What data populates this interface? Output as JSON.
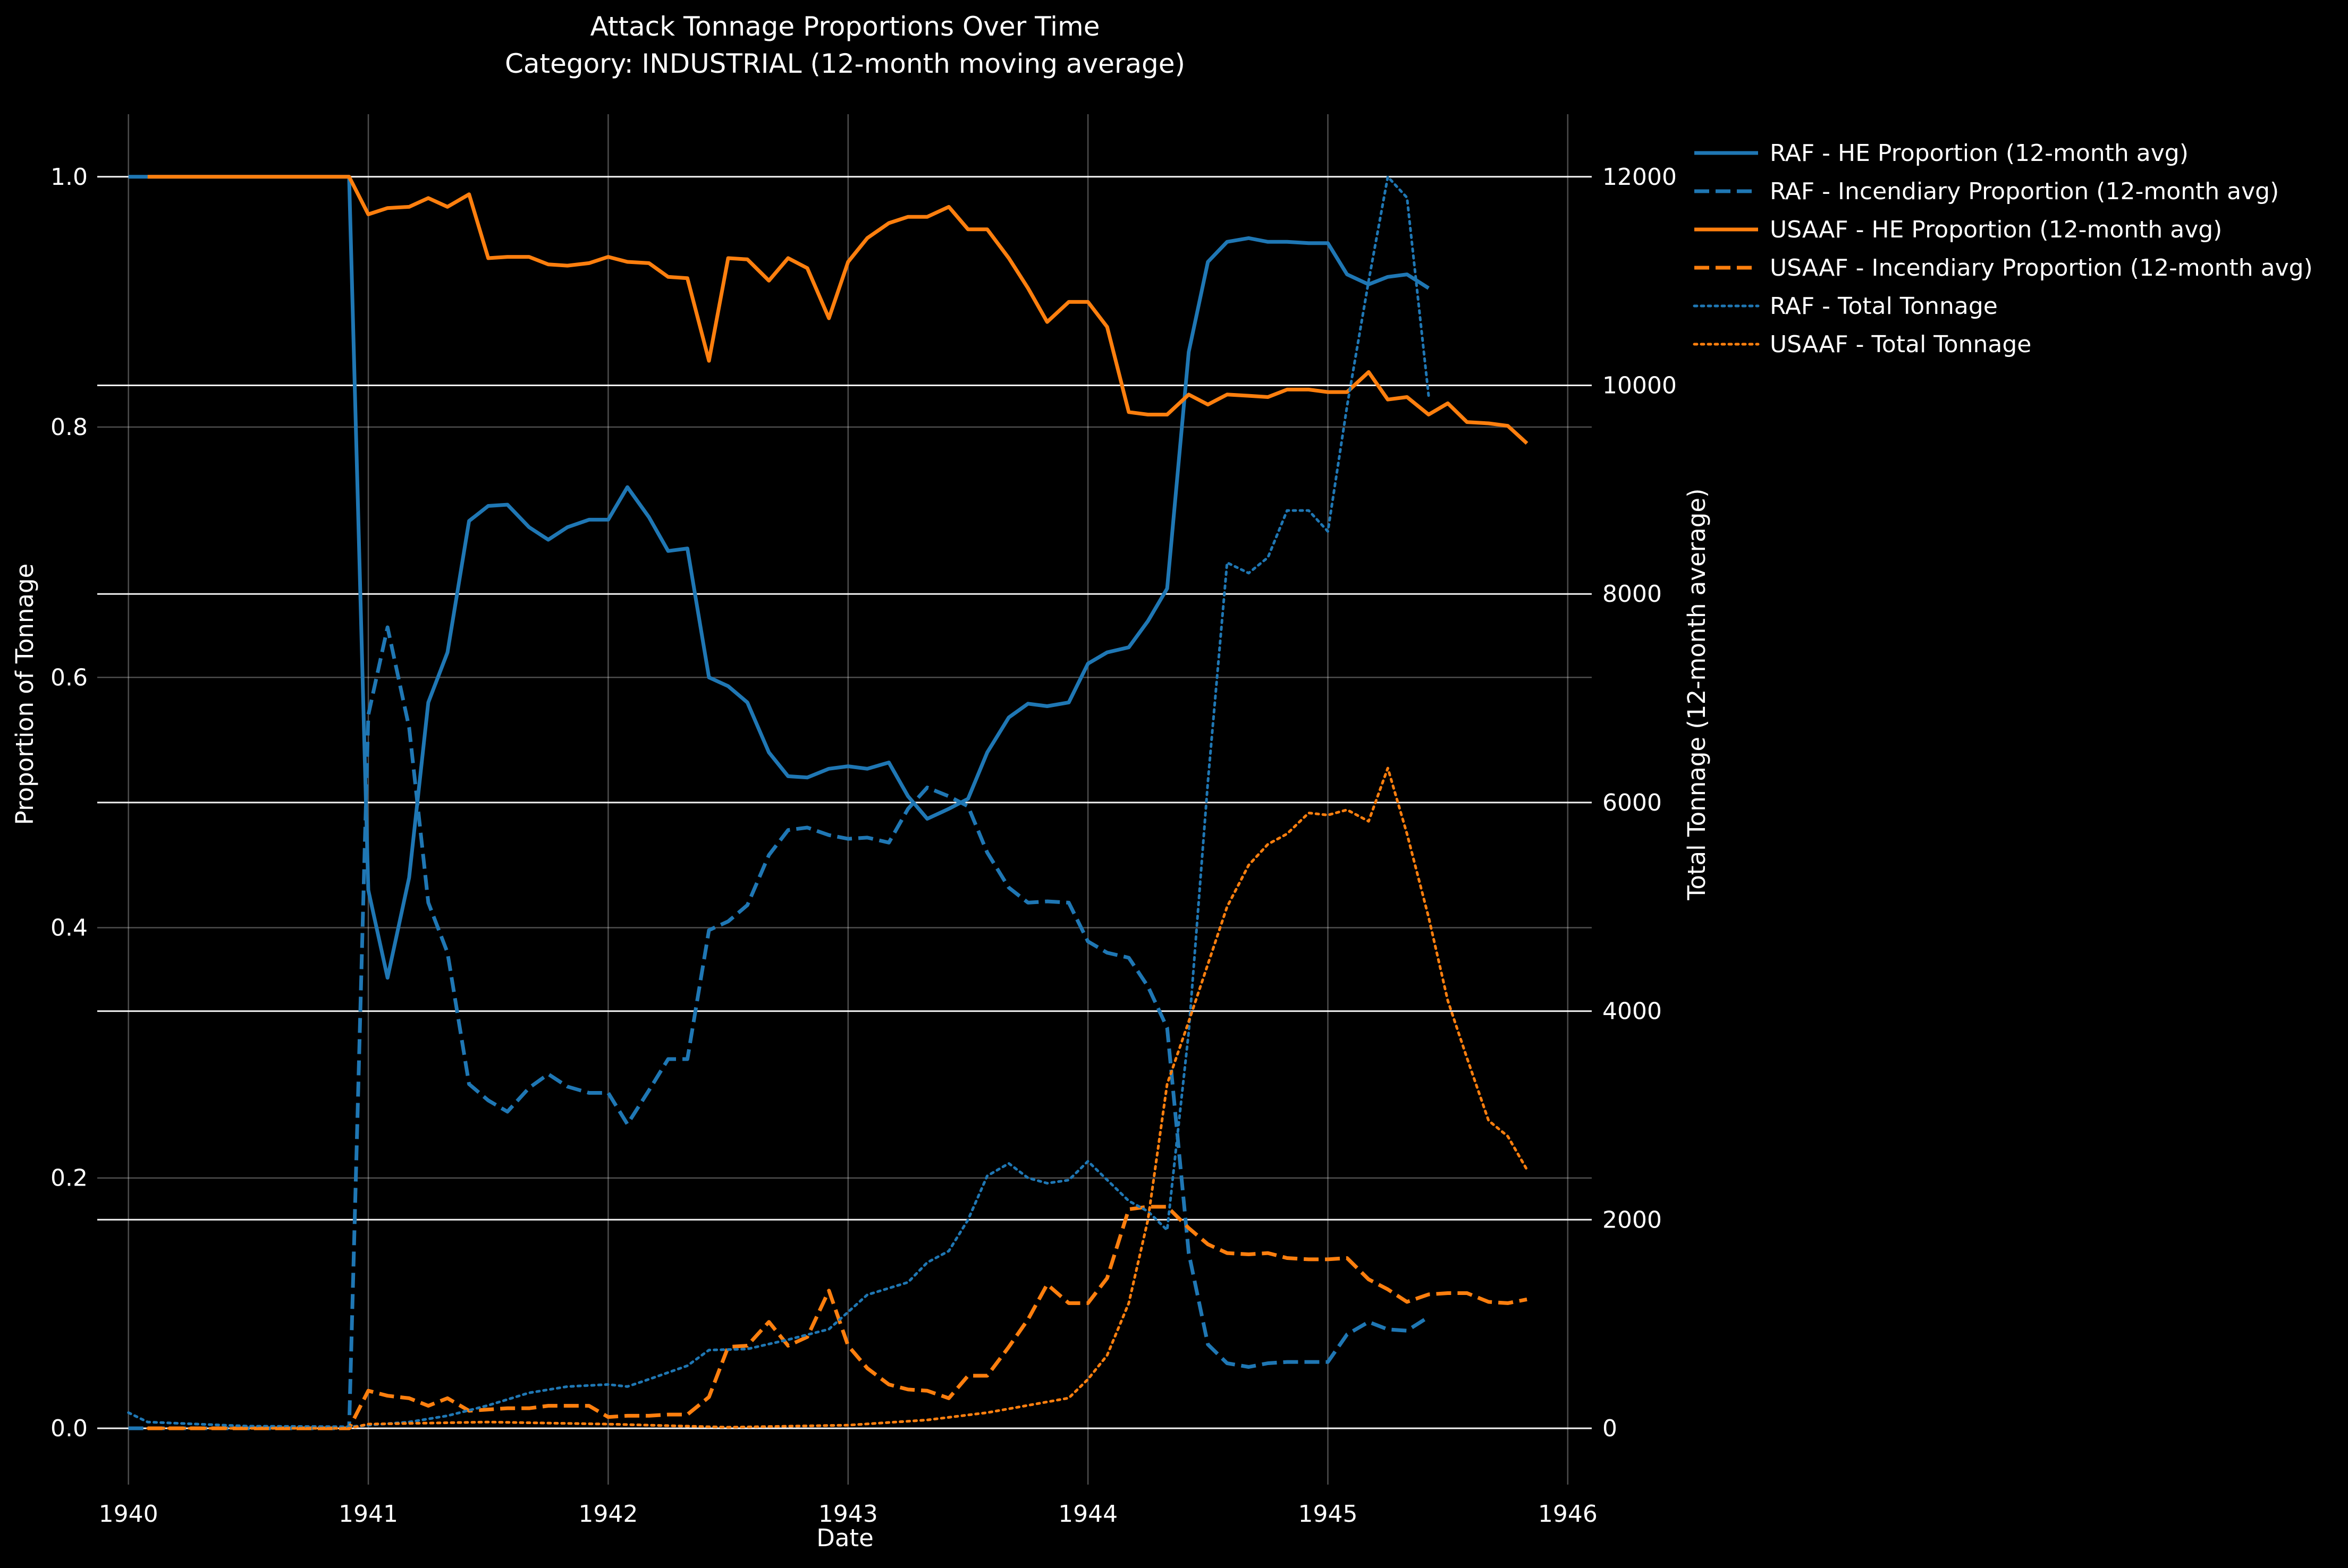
{
  "chart_data": {
    "type": "line",
    "title": "Attack Tonnage Proportions Over Time",
    "subtitle": "Category: INDUSTRIAL  (12-month moving average)",
    "xlabel": "Date",
    "ylabel": "Proportion of Tonnage",
    "y2label": "Total Tonnage (12-month average)",
    "xlim": [
      1939.87,
      1946.1
    ],
    "ylim": [
      -0.045,
      1.05
    ],
    "y2lim": [
      -540,
      12600
    ],
    "xticks": [
      1940,
      1941,
      1942,
      1943,
      1944,
      1945,
      1946
    ],
    "xtick_labels": [
      "1940",
      "1941",
      "1942",
      "1943",
      "1944",
      "1945",
      "1946"
    ],
    "yticks": [
      0.0,
      0.2,
      0.4,
      0.6,
      0.8,
      1.0
    ],
    "ytick_labels": [
      "0.0",
      "0.2",
      "0.4",
      "0.6",
      "0.8",
      "1.0"
    ],
    "y2ticks": [
      0,
      2000,
      4000,
      6000,
      8000,
      10000,
      12000
    ],
    "y2tick_labels": [
      "0",
      "2000",
      "4000",
      "6000",
      "8000",
      "10000",
      "12000"
    ],
    "grid": true,
    "legend_position": "outside-top-right",
    "colors": {
      "raf": "#1f77b4",
      "usaaf": "#ff7f0e",
      "background": "#000000",
      "text": "#ffffff"
    },
    "series": [
      {
        "name": "RAF - HE Proportion (12-month avg)",
        "axis": "left",
        "style": "solid",
        "color": "#1f77b4",
        "x": [
          1940.0,
          1940.08,
          1940.5,
          1940.92,
          1941.0,
          1941.08,
          1941.17,
          1941.25,
          1941.33,
          1941.42,
          1941.5,
          1941.58,
          1941.67,
          1941.75,
          1941.83,
          1941.92,
          1942.0,
          1942.08,
          1942.17,
          1942.25,
          1942.33,
          1942.42,
          1942.5,
          1942.58,
          1942.67,
          1942.75,
          1942.83,
          1942.92,
          1943.0,
          1943.08,
          1943.17,
          1943.25,
          1943.33,
          1943.42,
          1943.5,
          1943.58,
          1943.67,
          1943.75,
          1943.83,
          1943.92,
          1944.0,
          1944.08,
          1944.17,
          1944.25,
          1944.33,
          1944.42,
          1944.5,
          1944.58,
          1944.67,
          1944.75,
          1944.83,
          1944.92,
          1945.0,
          1945.08,
          1945.17,
          1945.25,
          1945.33,
          1945.42
        ],
        "y": [
          1.0,
          1.0,
          1.0,
          1.0,
          0.43,
          0.36,
          0.44,
          0.58,
          0.62,
          0.725,
          0.737,
          0.738,
          0.72,
          0.71,
          0.72,
          0.726,
          0.726,
          0.752,
          0.728,
          0.701,
          0.703,
          0.6,
          0.593,
          0.58,
          0.54,
          0.521,
          0.52,
          0.527,
          0.529,
          0.527,
          0.532,
          0.505,
          0.487,
          0.495,
          0.503,
          0.54,
          0.568,
          0.579,
          0.577,
          0.58,
          0.611,
          0.62,
          0.624,
          0.645,
          0.671,
          0.86,
          0.932,
          0.948,
          0.951,
          0.948,
          0.948,
          0.947,
          0.947,
          0.922,
          0.914,
          0.92,
          0.922,
          0.911
        ]
      },
      {
        "name": "RAF - Incendiary Proportion (12-month avg)",
        "axis": "left",
        "style": "dashed",
        "color": "#1f77b4",
        "x": [
          1940.0,
          1940.5,
          1940.92,
          1941.0,
          1941.08,
          1941.17,
          1941.25,
          1941.33,
          1941.42,
          1941.5,
          1941.58,
          1941.67,
          1941.75,
          1941.83,
          1941.92,
          1942.0,
          1942.08,
          1942.17,
          1942.25,
          1942.33,
          1942.42,
          1942.5,
          1942.58,
          1942.67,
          1942.75,
          1942.83,
          1942.92,
          1943.0,
          1943.08,
          1943.17,
          1943.25,
          1943.33,
          1943.42,
          1943.5,
          1943.58,
          1943.67,
          1943.75,
          1943.83,
          1943.92,
          1944.0,
          1944.08,
          1944.17,
          1944.25,
          1944.33,
          1944.42,
          1944.5,
          1944.58,
          1944.67,
          1944.75,
          1944.83,
          1944.92,
          1945.0,
          1945.08,
          1945.17,
          1945.25,
          1945.33,
          1945.42
        ],
        "y": [
          0.0,
          0.0,
          0.0,
          0.57,
          0.64,
          0.56,
          0.42,
          0.38,
          0.275,
          0.262,
          0.253,
          0.272,
          0.283,
          0.273,
          0.268,
          0.268,
          0.243,
          0.27,
          0.295,
          0.295,
          0.398,
          0.405,
          0.418,
          0.458,
          0.478,
          0.48,
          0.474,
          0.471,
          0.472,
          0.468,
          0.495,
          0.512,
          0.505,
          0.497,
          0.46,
          0.432,
          0.42,
          0.421,
          0.42,
          0.389,
          0.38,
          0.376,
          0.353,
          0.32,
          0.14,
          0.067,
          0.052,
          0.049,
          0.052,
          0.053,
          0.053,
          0.053,
          0.075,
          0.085,
          0.079,
          0.078,
          0.089
        ]
      },
      {
        "name": "USAAF - HE Proportion (12-month avg)",
        "axis": "left",
        "style": "solid",
        "color": "#ff7f0e",
        "x": [
          1940.08,
          1940.5,
          1940.92,
          1941.0,
          1941.08,
          1941.17,
          1941.25,
          1941.33,
          1941.42,
          1941.5,
          1941.58,
          1941.67,
          1941.75,
          1941.83,
          1941.92,
          1942.0,
          1942.08,
          1942.17,
          1942.25,
          1942.33,
          1942.42,
          1942.5,
          1942.58,
          1942.67,
          1942.75,
          1942.83,
          1942.92,
          1943.0,
          1943.08,
          1943.17,
          1943.25,
          1943.33,
          1943.42,
          1943.5,
          1943.58,
          1943.67,
          1943.75,
          1943.83,
          1943.92,
          1944.0,
          1944.08,
          1944.17,
          1944.25,
          1944.33,
          1944.42,
          1944.5,
          1944.58,
          1944.67,
          1944.75,
          1944.83,
          1944.92,
          1945.0,
          1945.08,
          1945.17,
          1945.25,
          1945.33,
          1945.42,
          1945.5,
          1945.58,
          1945.67,
          1945.75,
          1945.83
        ],
        "y": [
          1.0,
          1.0,
          1.0,
          0.97,
          0.975,
          0.976,
          0.983,
          0.976,
          0.986,
          0.935,
          0.936,
          0.936,
          0.93,
          0.929,
          0.931,
          0.936,
          0.932,
          0.931,
          0.92,
          0.919,
          0.853,
          0.935,
          0.934,
          0.917,
          0.935,
          0.927,
          0.887,
          0.932,
          0.951,
          0.963,
          0.968,
          0.968,
          0.976,
          0.958,
          0.958,
          0.935,
          0.911,
          0.884,
          0.9,
          0.9,
          0.88,
          0.812,
          0.81,
          0.81,
          0.826,
          0.818,
          0.826,
          0.825,
          0.824,
          0.83,
          0.83,
          0.828,
          0.828,
          0.844,
          0.822,
          0.824,
          0.81,
          0.819,
          0.804,
          0.803,
          0.801,
          0.787
        ]
      },
      {
        "name": "USAAF - Incendiary Proportion (12-month avg)",
        "axis": "left",
        "style": "dashed",
        "color": "#ff7f0e",
        "x": [
          1940.08,
          1940.5,
          1940.92,
          1941.0,
          1941.08,
          1941.17,
          1941.25,
          1941.33,
          1941.42,
          1941.5,
          1941.58,
          1941.67,
          1941.75,
          1941.83,
          1941.92,
          1942.0,
          1942.08,
          1942.17,
          1942.25,
          1942.33,
          1942.42,
          1942.5,
          1942.58,
          1942.67,
          1942.75,
          1942.83,
          1942.92,
          1943.0,
          1943.08,
          1943.17,
          1943.25,
          1943.33,
          1943.42,
          1943.5,
          1943.58,
          1943.67,
          1943.75,
          1943.83,
          1943.92,
          1944.0,
          1944.08,
          1944.17,
          1944.25,
          1944.33,
          1944.42,
          1944.5,
          1944.58,
          1944.67,
          1944.75,
          1944.83,
          1944.92,
          1945.0,
          1945.08,
          1945.17,
          1945.25,
          1945.33,
          1945.42,
          1945.5,
          1945.58,
          1945.67,
          1945.75,
          1945.83
        ],
        "y": [
          0.0,
          0.0,
          0.0,
          0.03,
          0.026,
          0.024,
          0.018,
          0.024,
          0.014,
          0.015,
          0.016,
          0.016,
          0.018,
          0.018,
          0.018,
          0.009,
          0.01,
          0.01,
          0.011,
          0.011,
          0.025,
          0.065,
          0.066,
          0.085,
          0.066,
          0.073,
          0.11,
          0.066,
          0.048,
          0.035,
          0.031,
          0.03,
          0.024,
          0.042,
          0.042,
          0.065,
          0.087,
          0.115,
          0.1,
          0.1,
          0.12,
          0.175,
          0.177,
          0.177,
          0.16,
          0.147,
          0.14,
          0.139,
          0.14,
          0.136,
          0.135,
          0.135,
          0.136,
          0.119,
          0.111,
          0.101,
          0.107,
          0.108,
          0.108,
          0.101,
          0.1,
          0.103
        ]
      },
      {
        "name": "RAF - Total Tonnage",
        "axis": "right",
        "style": "dotted",
        "color": "#1f77b4",
        "x": [
          1940.0,
          1940.08,
          1940.5,
          1940.92,
          1941.0,
          1941.17,
          1941.33,
          1941.5,
          1941.67,
          1941.83,
          1942.0,
          1942.08,
          1942.17,
          1942.33,
          1942.42,
          1942.58,
          1942.75,
          1942.92,
          1943.08,
          1943.25,
          1943.33,
          1943.42,
          1943.5,
          1943.58,
          1943.67,
          1943.75,
          1943.83,
          1943.92,
          1944.0,
          1944.17,
          1944.25,
          1944.33,
          1944.42,
          1944.5,
          1944.58,
          1944.67,
          1944.75,
          1944.83,
          1944.92,
          1945.0,
          1945.08,
          1945.17,
          1945.25,
          1945.33,
          1945.42
        ],
        "y": [
          150,
          60,
          20,
          15,
          30,
          60,
          120,
          220,
          340,
          400,
          420,
          400,
          470,
          600,
          750,
          760,
          850,
          950,
          1280,
          1400,
          1590,
          1700,
          2000,
          2420,
          2540,
          2400,
          2350,
          2380,
          2560,
          2180,
          2080,
          1900,
          3800,
          6200,
          8300,
          8200,
          8350,
          8800,
          8800,
          8600,
          9800,
          11000,
          12000,
          11800,
          9900
        ]
      },
      {
        "name": "USAAF - Total Tonnage",
        "axis": "right",
        "style": "dotted",
        "color": "#ff7f0e",
        "x": [
          1940.08,
          1940.5,
          1940.92,
          1941.0,
          1941.5,
          1942.0,
          1942.5,
          1943.0,
          1943.33,
          1943.58,
          1943.75,
          1943.92,
          1944.0,
          1944.08,
          1944.17,
          1944.25,
          1944.33,
          1944.42,
          1944.5,
          1944.58,
          1944.67,
          1944.75,
          1944.83,
          1944.92,
          1945.0,
          1945.08,
          1945.17,
          1945.25,
          1945.33,
          1945.42,
          1945.5,
          1945.58,
          1945.67,
          1945.75,
          1945.83
        ],
        "y": [
          0,
          0,
          0,
          40,
          60,
          40,
          10,
          30,
          80,
          150,
          220,
          290,
          470,
          700,
          1200,
          2000,
          3300,
          3900,
          4450,
          5000,
          5400,
          5600,
          5700,
          5900,
          5880,
          5930,
          5820,
          6330,
          5700,
          4900,
          4100,
          3550,
          2950,
          2800,
          2480
        ]
      }
    ]
  }
}
